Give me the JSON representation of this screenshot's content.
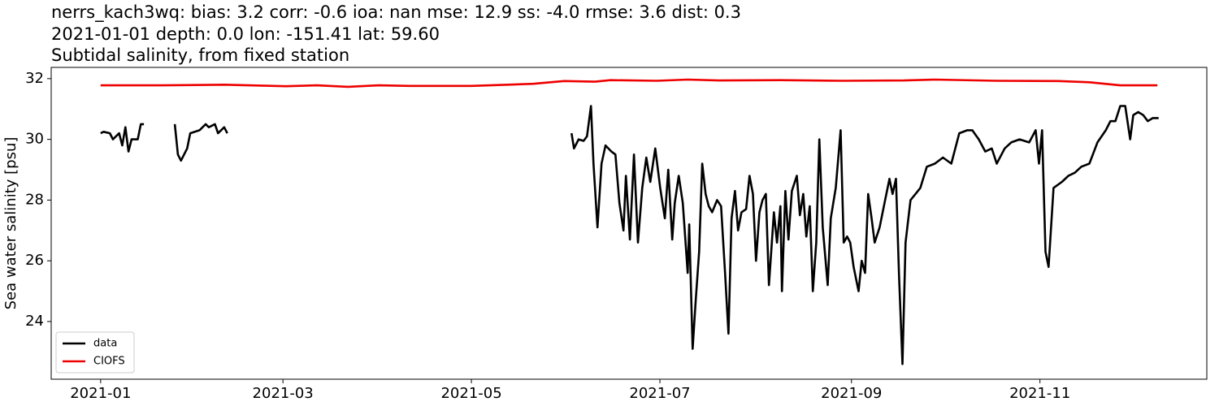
{
  "chart_data": {
    "type": "line",
    "title_lines": [
      "nerrs_kach3wq: bias: 3.2  corr: -0.6  ioa: nan  mse: 12.9  ss: -4.0  rmse: 3.6  dist: 0.3",
      "2021-01-01 depth: 0.0 lon: -151.41 lat: 59.60",
      "Subtidal salinity, from fixed station"
    ],
    "ylabel": "Sea water salinity [psu]",
    "xlim": [
      -16,
      358
    ],
    "xticks": [
      {
        "value": 0,
        "label": "2021-01"
      },
      {
        "value": 59,
        "label": "2021-03"
      },
      {
        "value": 120,
        "label": "2021-05"
      },
      {
        "value": 181,
        "label": "2021-07"
      },
      {
        "value": 243,
        "label": "2021-09"
      },
      {
        "value": 304,
        "label": "2021-11"
      }
    ],
    "ylim": [
      22.1,
      32.37
    ],
    "yticks": [
      24,
      26,
      28,
      30,
      32
    ],
    "legend": "lower left",
    "series": [
      {
        "name": "data",
        "color": "#000000",
        "x": [
          0,
          1,
          3,
          4,
          6,
          7,
          8,
          9,
          10,
          12,
          13,
          14,
          18,
          24,
          25,
          26,
          28,
          29,
          32,
          34,
          35,
          37,
          38,
          40,
          41,
          60,
          152.4,
          153.2,
          154.7,
          156.3,
          157.4,
          158.7,
          159.5,
          160.8,
          162.1,
          163.4,
          165.3,
          166.6,
          167.9,
          169.2,
          170,
          171.3,
          172.6,
          173.9,
          175.3,
          176.6,
          177.9,
          179.5,
          181.1,
          182.6,
          183.7,
          185,
          185.8,
          187.1,
          188.4,
          190,
          190.5,
          191.6,
          192.6,
          193.7,
          194.7,
          195.8,
          196.8,
          197.9,
          199.5,
          200.8,
          202.1,
          203.2,
          204.2,
          205.3,
          206.3,
          207.4,
          208.9,
          210,
          211.1,
          212.1,
          213.2,
          214.2,
          215.3,
          216.3,
          217.9,
          218.9,
          220,
          220.5,
          221.6,
          222.6,
          223.7,
          225.3,
          226.3,
          227.4,
          228.4,
          229.5,
          230.5,
          231.6,
          232.6,
          233.7,
          235.3,
          236.3,
          237.9,
          239.5,
          240.5,
          241.6,
          242.6,
          243.7,
          245.3,
          246.3,
          247.4,
          248.4,
          249.5,
          250.5,
          252.1,
          253.7,
          255.3,
          256.3,
          257.4,
          258.4,
          259.5,
          260.5,
          262.1,
          263.7,
          265.3,
          267.4,
          270,
          272.6,
          275.3,
          277.9,
          280.5,
          282.1,
          284.2,
          286.3,
          288.4,
          290,
          292.6,
          294.7,
          297.4,
          300.5,
          302.6,
          303.7,
          304.7,
          305.8,
          306.8,
          308.4,
          311.1,
          313.2,
          315.3,
          317.4,
          320,
          322.6,
          325.3,
          326.8,
          328.4,
          330,
          331.6,
          333.2,
          334.2,
          335.8,
          337.4,
          338.9,
          340.5,
          342.4
        ],
        "values": [
          30.2,
          30.25,
          30.2,
          30.0,
          30.2,
          29.8,
          30.4,
          29.6,
          30.0,
          30.0,
          30.5,
          30.5,
          null,
          30.5,
          29.5,
          29.3,
          29.7,
          30.2,
          30.3,
          30.5,
          30.4,
          30.5,
          30.2,
          30.4,
          30.2,
          null,
          30.2,
          29.7,
          30.0,
          29.95,
          30.1,
          31.1,
          29.2,
          27.1,
          29.2,
          29.8,
          29.6,
          29.5,
          27.9,
          27.0,
          28.8,
          26.7,
          29.5,
          26.6,
          28.4,
          29.4,
          28.6,
          29.7,
          28.4,
          27.4,
          29.0,
          26.7,
          27.9,
          28.8,
          27.9,
          25.6,
          27.2,
          23.1,
          24.7,
          26.3,
          29.2,
          28.2,
          27.8,
          27.6,
          28.0,
          27.8,
          25.6,
          23.6,
          27.4,
          28.3,
          27.0,
          27.6,
          27.7,
          28.8,
          28.2,
          26.0,
          27.6,
          28.0,
          28.2,
          25.2,
          27.6,
          26.6,
          27.8,
          25.0,
          28.3,
          26.7,
          28.3,
          28.8,
          27.5,
          28.2,
          26.8,
          27.8,
          25.0,
          26.6,
          30.0,
          27.1,
          25.2,
          27.4,
          28.4,
          30.3,
          26.6,
          26.8,
          26.6,
          25.8,
          25.0,
          26.0,
          25.6,
          28.2,
          27.4,
          26.6,
          27.1,
          27.9,
          28.7,
          28.2,
          28.7,
          25.5,
          22.6,
          26.6,
          28.0,
          28.2,
          28.4,
          29.1,
          29.2,
          29.4,
          29.2,
          30.2,
          30.3,
          30.3,
          30.0,
          29.6,
          29.7,
          29.2,
          29.7,
          29.9,
          30.0,
          29.9,
          30.3,
          29.2,
          30.3,
          26.3,
          25.8,
          28.4,
          28.6,
          28.8,
          28.9,
          29.1,
          29.2,
          29.9,
          30.3,
          30.6,
          30.6,
          31.1,
          31.1,
          30.0,
          30.8,
          30.9,
          30.8,
          30.6,
          30.7,
          30.7
        ]
      },
      {
        "name": "CIOFS",
        "color": "#ee0000",
        "x": [
          0,
          20,
          40,
          60,
          70,
          80,
          90,
          100,
          120,
          140,
          150,
          160,
          165,
          180,
          190,
          200,
          220,
          240,
          260,
          270,
          290,
          310,
          320,
          330,
          342
        ],
        "values": [
          31.78,
          31.78,
          31.8,
          31.75,
          31.78,
          31.73,
          31.78,
          31.76,
          31.76,
          31.83,
          31.92,
          31.9,
          31.95,
          31.93,
          31.97,
          31.94,
          31.95,
          31.93,
          31.94,
          31.97,
          31.93,
          31.92,
          31.88,
          31.78,
          31.78
        ]
      }
    ]
  }
}
